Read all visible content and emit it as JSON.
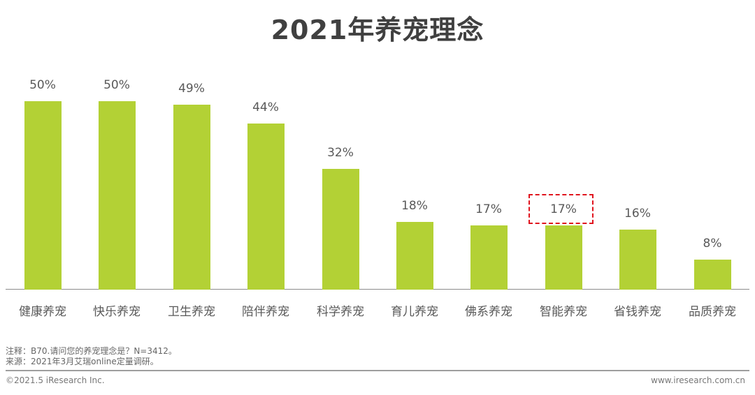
{
  "title": "2021年养宠理念",
  "chart_data": {
    "type": "bar",
    "title": "2021年养宠理念",
    "categories": [
      "健康养宠",
      "快乐养宠",
      "卫生养宠",
      "陪伴养宠",
      "科学养宠",
      "育儿养宠",
      "佛系养宠",
      "智能养宠",
      "省钱养宠",
      "品质养宠"
    ],
    "values": [
      50,
      50,
      49,
      44,
      32,
      18,
      17,
      17,
      16,
      8
    ],
    "labels": [
      "50%",
      "50%",
      "49%",
      "44%",
      "32%",
      "18%",
      "17%",
      "17%",
      "16%",
      "8%"
    ],
    "unit": "%",
    "xlabel": "",
    "ylabel": "",
    "ylim": [
      0,
      50
    ],
    "grid": false,
    "legend": null,
    "bar_color": "#b3d135",
    "annotations": [
      {
        "type": "dashed-box",
        "target": "智能养宠",
        "color": "#e0141e"
      }
    ]
  },
  "notes": {
    "note": "注释：B70.请问您的养宠理念是？N=3412。",
    "source": "来源：2021年3月艾瑞online定量调研。"
  },
  "footer": {
    "copyright": "©2021.5 iResearch Inc.",
    "website": "www.iresearch.com.cn"
  }
}
